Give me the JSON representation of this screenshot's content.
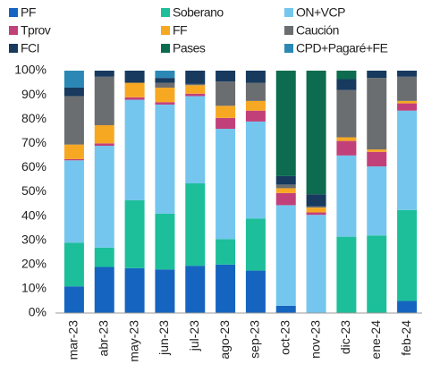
{
  "chart_data": {
    "type": "bar",
    "stacked": true,
    "categories": [
      "mar-23",
      "abr-23",
      "may-23",
      "jun-23",
      "jul-23",
      "ago-23",
      "sep-23",
      "oct-23",
      "nov-23",
      "dic-23",
      "ene-24",
      "feb-24"
    ],
    "series": [
      {
        "name": "PF",
        "color": "#1565c0",
        "values": [
          11,
          19,
          18.5,
          18,
          19.5,
          20,
          17.5,
          3,
          0,
          0,
          0,
          5
        ]
      },
      {
        "name": "Soberano",
        "color": "#1dbf9a",
        "values": [
          18,
          8,
          28,
          23,
          34,
          10.5,
          21.5,
          0,
          0,
          31.5,
          32,
          37.5
        ]
      },
      {
        "name": "ON+VCP",
        "color": "#74c6ee",
        "values": [
          34,
          42,
          41.5,
          45,
          36,
          45.5,
          40,
          41.5,
          40.5,
          33.5,
          28.5,
          41
        ]
      },
      {
        "name": "Tprov",
        "color": "#c2407a",
        "values": [
          0.5,
          1,
          1,
          1,
          1,
          4.5,
          4.5,
          5,
          1,
          6,
          6,
          3
        ]
      },
      {
        "name": "FF",
        "color": "#f7a823",
        "values": [
          6,
          7.5,
          6,
          6,
          3.5,
          5,
          4,
          2,
          2,
          1.5,
          1,
          1
        ]
      },
      {
        "name": "Caución",
        "color": "#6b6e70",
        "values": [
          20,
          20,
          0,
          2,
          0.5,
          10,
          7.5,
          1.5,
          0.5,
          19.5,
          29.5,
          10
        ]
      },
      {
        "name": "FCI",
        "color": "#173a5e",
        "values": [
          3.5,
          2.5,
          5,
          2,
          5.5,
          4.5,
          5,
          3.5,
          5,
          4.5,
          3,
          2.5
        ]
      },
      {
        "name": "Pases",
        "color": "#0d6b4f",
        "values": [
          0,
          0,
          0,
          0,
          0,
          0,
          0,
          43.5,
          51,
          3.5,
          0,
          0
        ]
      },
      {
        "name": "CPD+Pagaré+FE",
        "color": "#2b88b5",
        "values": [
          7,
          0,
          0,
          3,
          0,
          0,
          0,
          0,
          0,
          0,
          0,
          0
        ]
      }
    ],
    "ylim": [
      0,
      100
    ],
    "yticks": [
      {
        "value": 0,
        "label": "0%"
      },
      {
        "value": 10,
        "label": "10%"
      },
      {
        "value": 20,
        "label": "20%"
      },
      {
        "value": 30,
        "label": "30%"
      },
      {
        "value": 40,
        "label": "40%"
      },
      {
        "value": 50,
        "label": "50%"
      },
      {
        "value": 60,
        "label": "60%"
      },
      {
        "value": 70,
        "label": "70%"
      },
      {
        "value": 80,
        "label": "80%"
      },
      {
        "value": 90,
        "label": "90%"
      },
      {
        "value": 100,
        "label": "100%"
      }
    ],
    "grid": false
  }
}
